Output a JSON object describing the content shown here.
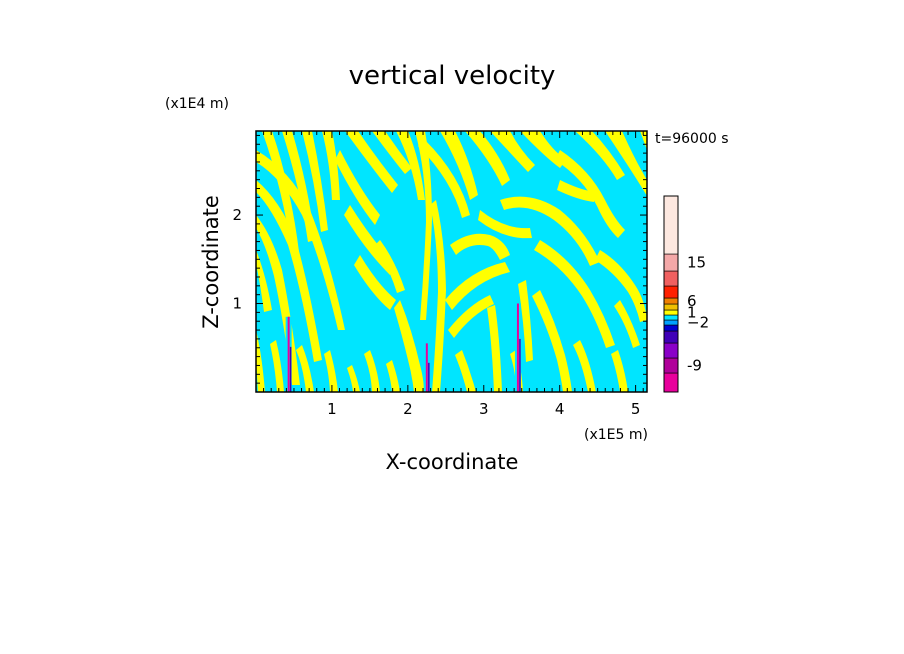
{
  "chart_data": {
    "type": "heatmap",
    "title": "vertical velocity",
    "time_label": "t=96000 s",
    "xlabel": "X-coordinate",
    "ylabel": "Z-coordinate",
    "x_unit": "(x1E5 m)",
    "y_unit": "(x1E4 m)",
    "xlim": [
      0,
      5.15
    ],
    "ylim": [
      0,
      2.95
    ],
    "x_ticks": [
      1,
      2,
      3,
      4,
      5
    ],
    "y_ticks": [
      1,
      2
    ],
    "colors": {
      "positive": "#ffff00",
      "negative": "#00e5ff",
      "frame": "#000000"
    },
    "colorbar": {
      "colors": [
        "#e8009c",
        "#b0009a",
        "#8a00c8",
        "#4000b8",
        "#0000d0",
        "#00a0ff",
        "#00e5ff",
        "#ffff00",
        "#f0c000",
        "#f08000",
        "#ff2000",
        "#f06060",
        "#f4a8a8",
        "#fde8e0"
      ],
      "labeled_ticks": [
        {
          "label": "-9",
          "index": 1
        },
        {
          "label": "−2",
          "index": 5
        },
        {
          "label": "1",
          "index": 7
        },
        {
          "label": "6",
          "index": 9
        },
        {
          "label": "15",
          "index": 12
        }
      ]
    },
    "updrafts": [
      {
        "x": 0.43,
        "z_top": 0.85
      },
      {
        "x": 2.25,
        "z_top": 0.55
      },
      {
        "x": 3.45,
        "z_top": 1.0
      }
    ]
  }
}
